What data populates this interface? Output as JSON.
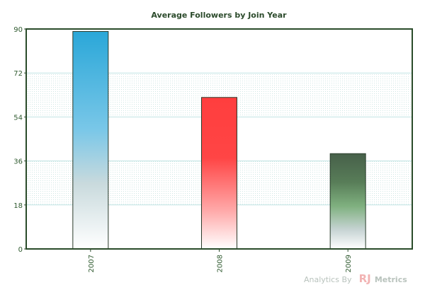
{
  "chart_data": {
    "type": "bar",
    "title": "Average Followers by Join Year",
    "xlabel": "",
    "ylabel": "",
    "categories": [
      "2007",
      "2008",
      "2009"
    ],
    "values": [
      89,
      62,
      39
    ],
    "ylim": [
      0,
      90
    ],
    "yticks": [
      "0",
      "18",
      "36",
      "54",
      "72",
      "90"
    ],
    "grid": true,
    "legend": "none",
    "bar_colors": [
      "#2aa7d8",
      "#ff3e3e",
      "#47604a"
    ]
  },
  "footer": {
    "credit_prefix": "Analytics By",
    "credit_brand_rj": "RJ",
    "credit_brand_rest": "Metrics"
  },
  "colors": {
    "axis": "#2a4b2a",
    "grid": "#bfe3e3",
    "band": "#e7f3f1"
  }
}
